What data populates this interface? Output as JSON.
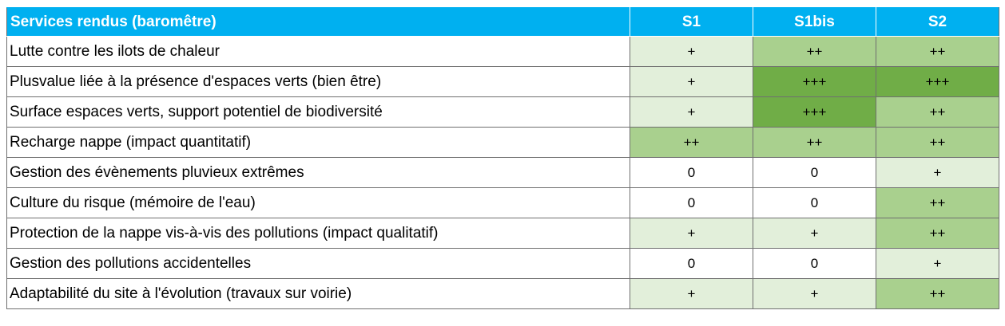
{
  "table": {
    "header": {
      "label": "Services rendus (baromêtre)",
      "columns": [
        "S1",
        "S1bis",
        "S2"
      ]
    },
    "rows": [
      {
        "label": "Lutte contre les ilots de chaleur",
        "values": [
          "+",
          "++",
          "++"
        ]
      },
      {
        "label": "Plusvalue liée à la présence d'espaces verts (bien être)",
        "values": [
          "+",
          "+++",
          "+++"
        ]
      },
      {
        "label": "Surface espaces verts, support potentiel de biodiversité",
        "values": [
          "+",
          "+++",
          "++"
        ]
      },
      {
        "label": "Recharge nappe (impact quantitatif)",
        "values": [
          "++",
          "++",
          "++"
        ]
      },
      {
        "label": "Gestion des évènements pluvieux extrêmes",
        "values": [
          "0",
          "0",
          "+"
        ]
      },
      {
        "label": "Culture du risque (mémoire de l'eau)",
        "values": [
          "0",
          "0",
          "++"
        ]
      },
      {
        "label": "Protection de la nappe vis-à-vis des pollutions (impact qualitatif)",
        "values": [
          "+",
          "+",
          "++"
        ]
      },
      {
        "label": "Gestion des pollutions accidentelles",
        "values": [
          "0",
          "0",
          "+"
        ]
      },
      {
        "label": "Adaptabilité du site à l'évolution (travaux sur voirie)",
        "values": [
          "+",
          "+",
          "++"
        ]
      }
    ],
    "colors": {
      "header_bg": "#00b0f0",
      "level_0": "#ffffff",
      "level_1": "#e2efda",
      "level_2": "#a9d08e",
      "level_3": "#70ad47"
    }
  }
}
